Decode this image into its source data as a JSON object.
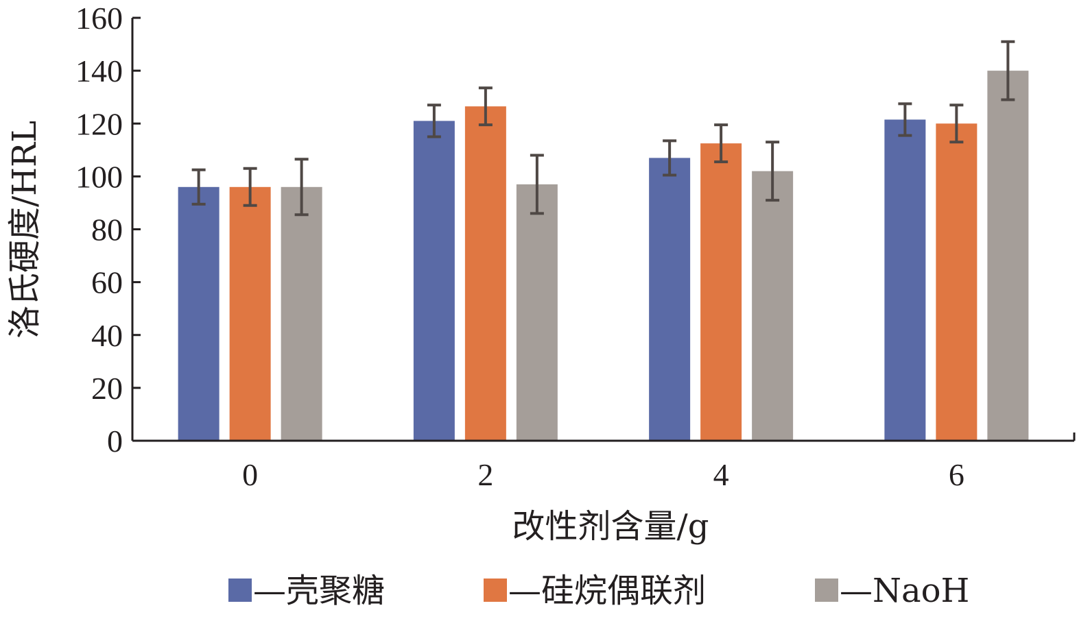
{
  "chart_data": {
    "type": "bar",
    "title": "",
    "xlabel": "改性剂含量/g",
    "ylabel": "洛氏硬度/HRL",
    "ylim": [
      0,
      160
    ],
    "yticks": [
      0,
      20,
      40,
      60,
      80,
      100,
      120,
      140,
      160
    ],
    "categories": [
      "0",
      "2",
      "4",
      "6"
    ],
    "legend_position": "bottom",
    "grid": false,
    "series": [
      {
        "name": "壳聚糖",
        "legend_label": "—壳聚糖",
        "color": "#5a6aa6",
        "values": [
          96,
          121,
          107,
          121.5
        ],
        "errors": [
          6.5,
          6,
          6.5,
          6
        ]
      },
      {
        "name": "硅烷偶联剂",
        "legend_label": "—硅烷偶联剂",
        "color": "#e07742",
        "values": [
          96,
          126.5,
          112.5,
          120
        ],
        "errors": [
          7,
          7,
          7,
          7
        ]
      },
      {
        "name": "NaoH",
        "legend_label": "—NaoH",
        "color": "#a59e99",
        "values": [
          96,
          97,
          102,
          140
        ],
        "errors": [
          10.5,
          11,
          11,
          11
        ]
      }
    ]
  }
}
